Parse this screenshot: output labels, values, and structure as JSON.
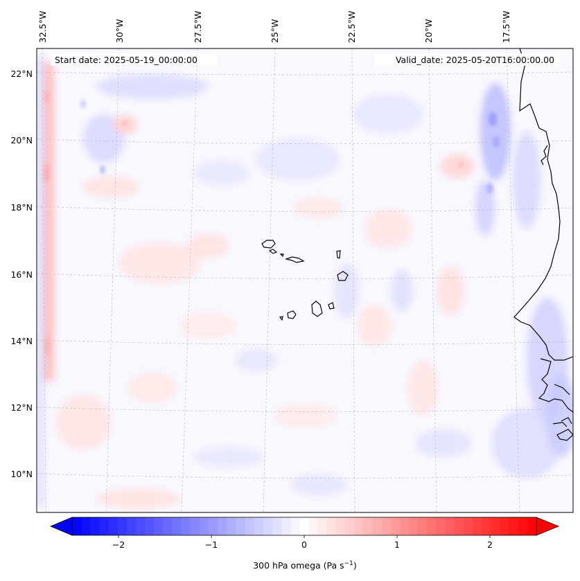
{
  "header": {
    "start_date": "Start date: 2025-05-19_00:00:00",
    "valid_date": "Valid_date: 2025-05-20T16:00:00.00"
  },
  "map": {
    "lon_labels": [
      "32.5°W",
      "30°W",
      "27.5°W",
      "25°W",
      "22.5°W",
      "20°W",
      "17.5°W"
    ],
    "lat_labels": [
      "22°N",
      "20°N",
      "18°N",
      "16°N",
      "14°N",
      "12°N",
      "10°N"
    ],
    "lon_range": [
      -33.0,
      -15.0
    ],
    "lat_range": [
      8.8,
      22.8
    ]
  },
  "colorbar": {
    "label": "300 hPa omega (Pa s",
    "label_exp": "−1",
    "label_close": ")",
    "ticks": [
      "−2",
      "−1",
      "0",
      "1",
      "2"
    ],
    "tick_values": [
      -2,
      -1,
      0,
      1,
      2
    ],
    "range": [
      -2.5,
      2.5
    ],
    "levels": 51,
    "negative_color": "#0000ff",
    "positive_color": "#ff0000"
  }
}
